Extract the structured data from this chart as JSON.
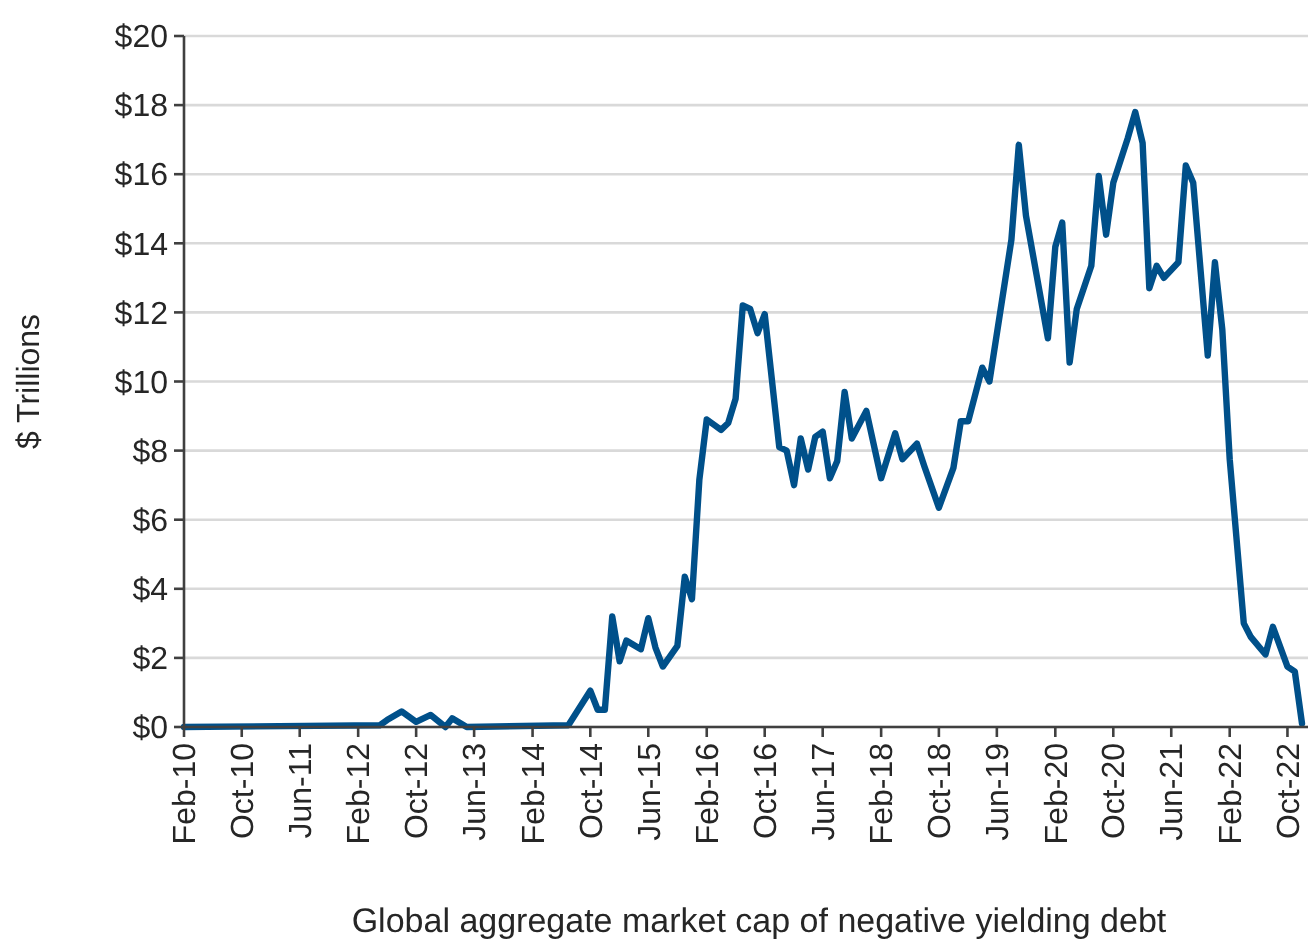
{
  "chart_data": {
    "type": "line",
    "xlabel": "Global aggregate market cap of negative yielding debt",
    "ylabel": "$ Trillions",
    "x": [
      "2010-02",
      "2012-05",
      "2012-06",
      "2012-08",
      "2012-10",
      "2012-12",
      "2013-02",
      "2013-03",
      "2013-05",
      "2014-07",
      "2014-10",
      "2014-11",
      "2014-12",
      "2015-01",
      "2015-02",
      "2015-03",
      "2015-05",
      "2015-06",
      "2015-07",
      "2015-08",
      "2015-10",
      "2015-11",
      "2015-12",
      "2016-01",
      "2016-02",
      "2016-04",
      "2016-05",
      "2016-06",
      "2016-07",
      "2016-08",
      "2016-09",
      "2016-10",
      "2016-12",
      "2017-01",
      "2017-02",
      "2017-03",
      "2017-04",
      "2017-05",
      "2017-06",
      "2017-07",
      "2017-08",
      "2017-09",
      "2017-10",
      "2017-12",
      "2018-02",
      "2018-04",
      "2018-05",
      "2018-07",
      "2018-08",
      "2018-10",
      "2018-12",
      "2019-01",
      "2019-02",
      "2019-04",
      "2019-05",
      "2019-08",
      "2019-09",
      "2019-10",
      "2020-01",
      "2020-02",
      "2020-03",
      "2020-04",
      "2020-05",
      "2020-07",
      "2020-08",
      "2020-09",
      "2020-10",
      "2020-12",
      "2021-01",
      "2021-02",
      "2021-03",
      "2021-04",
      "2021-05",
      "2021-07",
      "2021-08",
      "2021-09",
      "2021-11",
      "2021-12",
      "2022-01",
      "2022-02",
      "2022-04",
      "2022-05",
      "2022-07",
      "2022-08",
      "2022-10",
      "2022-11",
      "2022-12"
    ],
    "series": [
      {
        "color": "#00508a",
        "values": [
          0,
          0.05,
          0.2,
          0.45,
          0.15,
          0.35,
          0,
          0.25,
          0,
          0.05,
          1.05,
          0.5,
          0.5,
          3.2,
          1.9,
          2.5,
          2.25,
          3.15,
          2.3,
          1.75,
          2.35,
          4.35,
          3.7,
          7.15,
          8.9,
          8.6,
          8.8,
          9.5,
          12.2,
          12.1,
          11.4,
          11.95,
          8.1,
          8.0,
          7.0,
          8.35,
          7.45,
          8.4,
          8.55,
          7.2,
          7.7,
          9.7,
          8.35,
          9.15,
          7.2,
          8.5,
          7.75,
          8.2,
          7.55,
          6.35,
          7.5,
          8.85,
          8.85,
          10.4,
          10.0,
          14.1,
          16.85,
          14.8,
          11.25,
          13.9,
          14.6,
          10.55,
          12.1,
          13.35,
          15.95,
          14.25,
          15.75,
          17.05,
          17.8,
          16.9,
          12.7,
          13.35,
          13.0,
          13.45,
          16.25,
          15.75,
          10.75,
          13.45,
          11.5,
          7.75,
          3.0,
          2.6,
          2.1,
          2.9,
          1.75,
          1.6,
          0.1
        ]
      }
    ],
    "xlim": [
      "2010-02",
      "2022-12"
    ],
    "xticks": [
      {
        "value": "2010-02",
        "label": "Feb-10"
      },
      {
        "value": "2010-10",
        "label": "Oct-10"
      },
      {
        "value": "2011-06",
        "label": "Jun-11"
      },
      {
        "value": "2012-02",
        "label": "Feb-12"
      },
      {
        "value": "2012-10",
        "label": "Oct-12"
      },
      {
        "value": "2013-06",
        "label": "Jun-13"
      },
      {
        "value": "2014-02",
        "label": "Feb-14"
      },
      {
        "value": "2014-10",
        "label": "Oct-14"
      },
      {
        "value": "2015-06",
        "label": "Jun-15"
      },
      {
        "value": "2016-02",
        "label": "Feb-16"
      },
      {
        "value": "2016-10",
        "label": "Oct-16"
      },
      {
        "value": "2017-06",
        "label": "Jun-17"
      },
      {
        "value": "2018-02",
        "label": "Feb-18"
      },
      {
        "value": "2018-10",
        "label": "Oct-18"
      },
      {
        "value": "2019-06",
        "label": "Jun-19"
      },
      {
        "value": "2020-02",
        "label": "Feb-20"
      },
      {
        "value": "2020-10",
        "label": "Oct-20"
      },
      {
        "value": "2021-06",
        "label": "Jun-21"
      },
      {
        "value": "2022-02",
        "label": "Feb-22"
      },
      {
        "value": "2022-10",
        "label": "Oct-22"
      }
    ],
    "ylim": [
      0,
      20
    ],
    "yticks": [
      {
        "value": 0,
        "label": "$0"
      },
      {
        "value": 2,
        "label": "$2"
      },
      {
        "value": 4,
        "label": "$4"
      },
      {
        "value": 6,
        "label": "$6"
      },
      {
        "value": 8,
        "label": "$8"
      },
      {
        "value": 10,
        "label": "$10"
      },
      {
        "value": 12,
        "label": "$12"
      },
      {
        "value": 14,
        "label": "$14"
      },
      {
        "value": 16,
        "label": "$16"
      },
      {
        "value": 18,
        "label": "$18"
      },
      {
        "value": 20,
        "label": "$20"
      }
    ],
    "grid": "y",
    "marker": "none",
    "line_style": "solid"
  }
}
